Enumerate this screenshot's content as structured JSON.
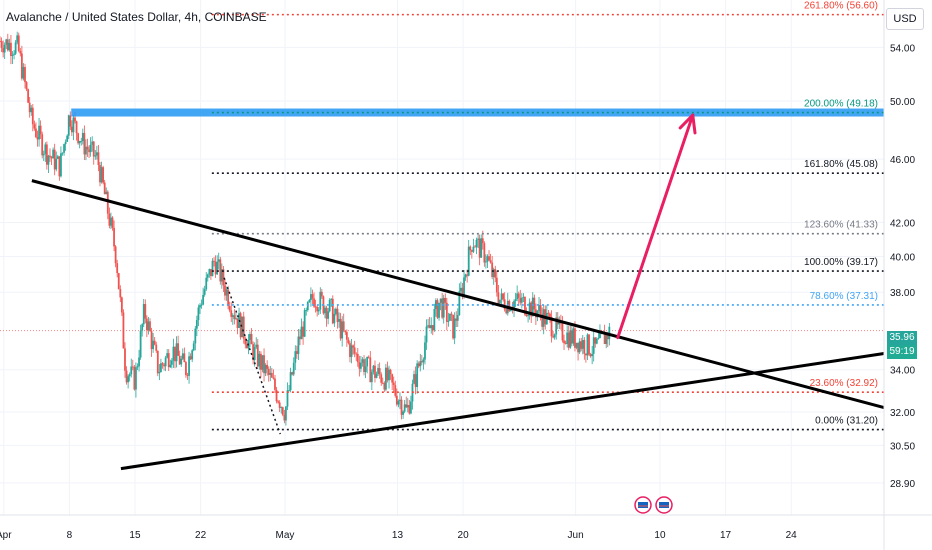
{
  "title": "Avalanche / United States Dollar, 4h, COINBASE",
  "currency_button": "USD",
  "price_tag": {
    "price": "35.96",
    "countdown": "59:19",
    "color": "#26a69a"
  },
  "colors": {
    "up": "#26a69a",
    "down": "#ef5350",
    "wick": "#4f4f4f",
    "trendline": "#000000",
    "target_zone": "#2196f3",
    "arrow": "#e91e63",
    "fib_red": "#f44336",
    "fib_black": "#131722",
    "fib_blue": "#42a5f5",
    "fib_teal": "#089981"
  },
  "chart_data": {
    "type": "candlestick",
    "ylim": [
      27.6,
      57.8
    ],
    "y_scale": "log",
    "y_ticks": [
      "54.00",
      "50.00",
      "46.00",
      "42.00",
      "40.00",
      "38.00",
      "34.00",
      "32.00",
      "30.50",
      "28.90"
    ],
    "y_tick_values": [
      54.0,
      50.0,
      46.0,
      42.0,
      40.0,
      38.0,
      34.0,
      32.0,
      30.5,
      28.9
    ],
    "x_ticks": [
      {
        "label": "Apr",
        "day": 1
      },
      {
        "label": "8",
        "day": 8
      },
      {
        "label": "15",
        "day": 15
      },
      {
        "label": "22",
        "day": 22
      },
      {
        "label": "May",
        "day": 31
      },
      {
        "label": "13",
        "day": 43
      },
      {
        "label": "20",
        "day": 50
      },
      {
        "label": "Jun",
        "day": 62
      },
      {
        "label": "10",
        "day": 71
      },
      {
        "label": "17",
        "day": 78
      },
      {
        "label": "24",
        "day": 85
      }
    ],
    "x_range_days": [
      0.6,
      94.9
    ],
    "close_series": [
      {
        "day": 0.6,
        "price": 54.5
      },
      {
        "day": 2.5,
        "price": 54.0
      },
      {
        "day": 4,
        "price": 48.5
      },
      {
        "day": 5.5,
        "price": 46.5
      },
      {
        "day": 7,
        "price": 45.5
      },
      {
        "day": 8,
        "price": 49.0
      },
      {
        "day": 9.5,
        "price": 47.0
      },
      {
        "day": 11,
        "price": 46.0
      },
      {
        "day": 13,
        "price": 40.0
      },
      {
        "day": 14,
        "price": 34.0
      },
      {
        "day": 15,
        "price": 33.5
      },
      {
        "day": 16,
        "price": 37.0
      },
      {
        "day": 17.5,
        "price": 34.0
      },
      {
        "day": 19,
        "price": 35.0
      },
      {
        "day": 20.5,
        "price": 34.0
      },
      {
        "day": 22,
        "price": 37.5
      },
      {
        "day": 23.5,
        "price": 39.8
      },
      {
        "day": 25.5,
        "price": 37.0
      },
      {
        "day": 27.5,
        "price": 35.0
      },
      {
        "day": 29.5,
        "price": 33.5
      },
      {
        "day": 31,
        "price": 32.0
      },
      {
        "day": 32.5,
        "price": 35.5
      },
      {
        "day": 34,
        "price": 37.8
      },
      {
        "day": 36,
        "price": 37.0
      },
      {
        "day": 38,
        "price": 35.0
      },
      {
        "day": 40,
        "price": 34.0
      },
      {
        "day": 42,
        "price": 33.5
      },
      {
        "day": 44,
        "price": 32.0
      },
      {
        "day": 46,
        "price": 35.5
      },
      {
        "day": 47.5,
        "price": 37.5
      },
      {
        "day": 49,
        "price": 36.0
      },
      {
        "day": 50,
        "price": 38.5
      },
      {
        "day": 51,
        "price": 41.0
      },
      {
        "day": 52.5,
        "price": 40.0
      },
      {
        "day": 54,
        "price": 37.5
      },
      {
        "day": 56,
        "price": 37.5
      },
      {
        "day": 58,
        "price": 37.0
      },
      {
        "day": 60,
        "price": 36.0
      },
      {
        "day": 62,
        "price": 35.5
      },
      {
        "day": 64,
        "price": 35.0
      },
      {
        "day": 65.7,
        "price": 35.96
      }
    ],
    "fib_levels": [
      {
        "label": "261.80% (56.60)",
        "price": 56.6,
        "color": "#f44336"
      },
      {
        "label": "200.00% (49.18)",
        "price": 49.18,
        "color": "#089981"
      },
      {
        "label": "161.80% (45.08)",
        "price": 45.08,
        "color": "#131722"
      },
      {
        "label": "123.60% (41.33)",
        "price": 41.33,
        "color": "#787b86"
      },
      {
        "label": "100.00% (39.17)",
        "price": 39.17,
        "color": "#131722"
      },
      {
        "label": "78.60% (37.31)",
        "price": 37.31,
        "color": "#42a5f5"
      },
      {
        "label": "23.60% (32.92)",
        "price": 32.92,
        "color": "#f44336"
      },
      {
        "label": "0.00% (31.20)",
        "price": 31.2,
        "color": "#131722"
      }
    ],
    "fib_start_day": 23.2,
    "fib_end_day": 94.9,
    "upper_trendline": [
      {
        "day": 4,
        "price": 44.6
      },
      {
        "day": 94.9,
        "price": 32.2
      }
    ],
    "lower_trendline": [
      {
        "day": 13.5,
        "price": 29.5
      },
      {
        "day": 94.9,
        "price": 34.8
      }
    ],
    "target_zone": {
      "price": 49.18
    },
    "arrow": {
      "from": {
        "day": 66.5,
        "price": 35.6
      },
      "to": {
        "day": 74.5,
        "price": 49.0
      }
    },
    "dotted_path": [
      {
        "day": 24.5,
        "price": 38.8
      },
      {
        "day": 30.5,
        "price": 31.0
      }
    ],
    "current_price": 35.96
  }
}
